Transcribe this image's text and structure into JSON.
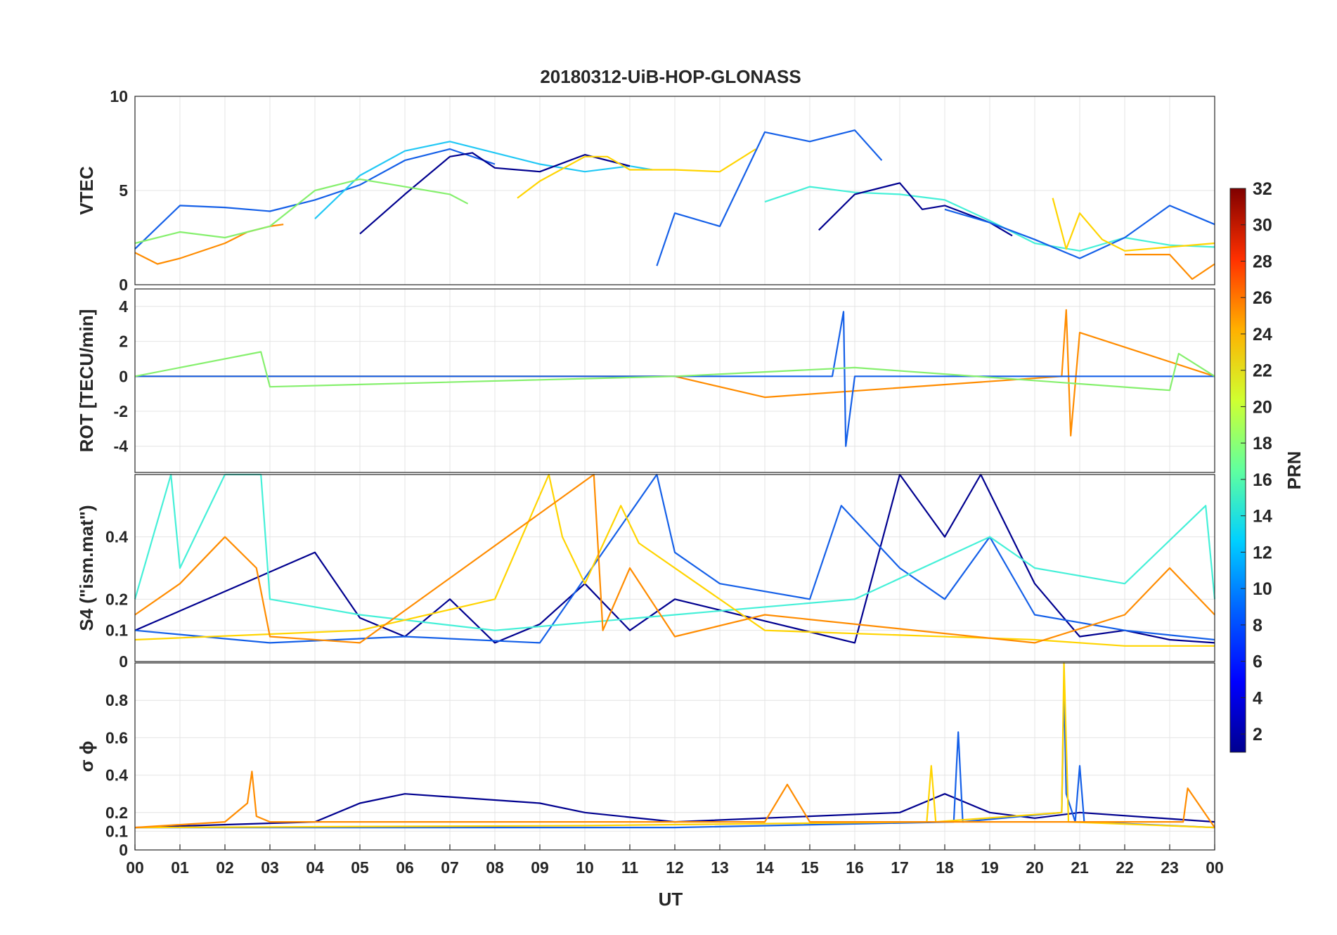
{
  "figure": {
    "title": "20180312-UiB-HOP-GLONASS",
    "xlabel": "UT",
    "x_ticks": [
      "00",
      "01",
      "02",
      "03",
      "04",
      "05",
      "06",
      "07",
      "08",
      "09",
      "10",
      "11",
      "12",
      "13",
      "14",
      "15",
      "16",
      "17",
      "18",
      "19",
      "20",
      "21",
      "22",
      "23",
      "00"
    ],
    "grid": true
  },
  "colorbar": {
    "label": "PRN",
    "range": [
      1,
      32
    ],
    "ticks": [
      "2",
      "4",
      "6",
      "8",
      "10",
      "12",
      "14",
      "16",
      "18",
      "20",
      "22",
      "24",
      "26",
      "28",
      "30",
      "32"
    ],
    "colormap": "jet",
    "colors": [
      "#00008f",
      "#0000ff",
      "#0080ff",
      "#00ffff",
      "#80ff80",
      "#ffff00",
      "#ff8000",
      "#ff0000",
      "#800000"
    ]
  },
  "chart_data": [
    {
      "type": "line",
      "panel": "vtec",
      "ylabel": "VTEC",
      "xlim": [
        0,
        24
      ],
      "ylim": [
        0,
        10
      ],
      "y_ticks": [
        "0",
        "5",
        "10"
      ],
      "series": [
        {
          "color": "#1560e8",
          "x": [
            0,
            1,
            2,
            3,
            4,
            5,
            6,
            7,
            8
          ],
          "y": [
            1.9,
            4.2,
            4.1,
            3.9,
            4.5,
            5.3,
            6.6,
            7.2,
            6.4
          ]
        },
        {
          "color": "#22c8f5",
          "x": [
            4,
            5,
            6,
            7,
            8,
            9,
            10,
            11,
            11.5
          ],
          "y": [
            3.5,
            5.8,
            7.1,
            7.6,
            7.0,
            6.4,
            6.0,
            6.3,
            6.1
          ]
        },
        {
          "color": "#00008f",
          "x": [
            5,
            6,
            7,
            7.5,
            8,
            9,
            10,
            11
          ],
          "y": [
            2.7,
            4.8,
            6.8,
            7.0,
            6.2,
            6.0,
            6.9,
            6.3
          ]
        },
        {
          "color": "#ffd400",
          "x": [
            8.5,
            9,
            10,
            10.5,
            11,
            12,
            13,
            13.8
          ],
          "y": [
            4.6,
            5.5,
            6.8,
            6.8,
            6.1,
            6.1,
            6.0,
            7.2
          ]
        },
        {
          "color": "#ff8c00",
          "x": [
            0,
            0.5,
            1,
            2,
            2.5,
            3,
            3.3
          ],
          "y": [
            1.7,
            1.1,
            1.4,
            2.2,
            2.8,
            3.1,
            3.2
          ]
        },
        {
          "color": "#86f06e",
          "x": [
            0,
            1,
            2,
            3,
            4,
            5,
            6,
            7,
            7.4
          ],
          "y": [
            2.2,
            2.8,
            2.5,
            3.1,
            5.0,
            5.6,
            5.2,
            4.8,
            4.3
          ]
        },
        {
          "color": "#1560e8",
          "x": [
            11.6,
            12,
            13,
            14,
            15,
            16,
            16.6
          ],
          "y": [
            1.0,
            3.8,
            3.1,
            8.1,
            7.6,
            8.2,
            6.6
          ]
        },
        {
          "color": "#45f0d8",
          "x": [
            14,
            15,
            16,
            17,
            18,
            19,
            20,
            21,
            22,
            23,
            24
          ],
          "y": [
            4.4,
            5.2,
            4.9,
            4.8,
            4.5,
            3.4,
            2.2,
            1.8,
            2.5,
            2.1,
            2.0
          ]
        },
        {
          "color": "#00008f",
          "x": [
            15.2,
            16,
            17,
            17.5,
            18,
            19,
            19.5
          ],
          "y": [
            2.9,
            4.8,
            5.4,
            4.0,
            4.2,
            3.3,
            2.6
          ]
        },
        {
          "color": "#1560e8",
          "x": [
            18,
            19,
            20,
            21,
            22,
            23,
            24
          ],
          "y": [
            4.0,
            3.3,
            2.4,
            1.4,
            2.5,
            4.2,
            3.2
          ]
        },
        {
          "color": "#ffd400",
          "x": [
            20.4,
            20.7,
            21,
            21.5,
            22,
            23,
            24
          ],
          "y": [
            4.6,
            1.9,
            3.8,
            2.4,
            1.8,
            2.0,
            2.2
          ]
        },
        {
          "color": "#ff8c00",
          "x": [
            22,
            23,
            23.5,
            24
          ],
          "y": [
            1.6,
            1.6,
            0.3,
            1.1
          ]
        }
      ]
    },
    {
      "type": "line",
      "panel": "rot",
      "ylabel": "ROT [TECU/min]",
      "xlim": [
        0,
        24
      ],
      "ylim": [
        -5.5,
        5
      ],
      "y_ticks": [
        "-4",
        "-2",
        "0",
        "2",
        "4"
      ],
      "series": [
        {
          "color": "#ff8c00",
          "x": [
            0,
            6,
            12,
            14,
            20.6,
            20.7,
            20.8,
            21,
            24
          ],
          "y": [
            0,
            0,
            0,
            -1.2,
            0,
            3.8,
            -3.4,
            2.5,
            0
          ]
        },
        {
          "color": "#1560e8",
          "x": [
            0,
            15.5,
            15.75,
            15.8,
            16,
            24
          ],
          "y": [
            0,
            0,
            3.7,
            -4.0,
            0,
            0
          ]
        },
        {
          "color": "#86f06e",
          "x": [
            0,
            2.8,
            3,
            12,
            16,
            23,
            23.2,
            24
          ],
          "y": [
            0,
            1.4,
            -0.6,
            0,
            0.5,
            -0.8,
            1.3,
            0
          ]
        }
      ]
    },
    {
      "type": "line",
      "panel": "s4",
      "ylabel": "S4 (\"ism.mat\")",
      "xlim": [
        0,
        24
      ],
      "ylim": [
        0,
        0.6
      ],
      "y_ticks": [
        "0",
        "0.1",
        "0.2",
        "0.4"
      ],
      "series": [
        {
          "color": "#00008f",
          "x": [
            0,
            4,
            5,
            6,
            7,
            8,
            9,
            10,
            11,
            12,
            16,
            17,
            18,
            18.8,
            20,
            21,
            22,
            23,
            24
          ],
          "y": [
            0.1,
            0.35,
            0.14,
            0.08,
            0.2,
            0.06,
            0.12,
            0.25,
            0.1,
            0.2,
            0.06,
            0.6,
            0.4,
            0.6,
            0.25,
            0.08,
            0.1,
            0.07,
            0.06
          ]
        },
        {
          "color": "#1560e8",
          "x": [
            0,
            3,
            6,
            9,
            11.6,
            12,
            13,
            15,
            15.7,
            17,
            18,
            19,
            20,
            22,
            24
          ],
          "y": [
            0.1,
            0.06,
            0.08,
            0.06,
            0.6,
            0.35,
            0.25,
            0.2,
            0.5,
            0.3,
            0.2,
            0.4,
            0.15,
            0.1,
            0.07
          ]
        },
        {
          "color": "#45f0d8",
          "x": [
            0,
            0.8,
            1,
            2,
            2.8,
            3,
            5,
            8,
            12,
            16,
            19,
            20,
            22,
            23.8,
            24
          ],
          "y": [
            0.2,
            0.6,
            0.3,
            0.6,
            0.6,
            0.2,
            0.15,
            0.1,
            0.15,
            0.2,
            0.4,
            0.3,
            0.25,
            0.5,
            0.2
          ]
        },
        {
          "color": "#ffd400",
          "x": [
            0,
            5,
            8,
            9.2,
            9.5,
            10,
            10.8,
            11.2,
            14,
            20,
            22,
            24
          ],
          "y": [
            0.07,
            0.1,
            0.2,
            0.6,
            0.4,
            0.25,
            0.5,
            0.38,
            0.1,
            0.07,
            0.05,
            0.05
          ]
        },
        {
          "color": "#ff8c00",
          "x": [
            0,
            1,
            2,
            2.7,
            3,
            5,
            10.2,
            10.4,
            11,
            12,
            14,
            20,
            22,
            23,
            24
          ],
          "y": [
            0.15,
            0.25,
            0.4,
            0.3,
            0.08,
            0.06,
            0.6,
            0.1,
            0.3,
            0.08,
            0.15,
            0.06,
            0.15,
            0.3,
            0.15
          ]
        }
      ]
    },
    {
      "type": "line",
      "panel": "sigma_phi",
      "ylabel": "σ ϕ",
      "xlim": [
        0,
        24
      ],
      "ylim": [
        0,
        1
      ],
      "y_ticks": [
        "0",
        "0.1",
        "0.2",
        "0.4",
        "0.6",
        "0.8"
      ],
      "series": [
        {
          "color": "#00008f",
          "x": [
            0,
            4,
            5,
            6,
            9,
            10,
            12,
            17,
            18,
            19,
            20,
            21,
            24
          ],
          "y": [
            0.12,
            0.15,
            0.25,
            0.3,
            0.25,
            0.2,
            0.15,
            0.2,
            0.3,
            0.2,
            0.17,
            0.2,
            0.15
          ]
        },
        {
          "color": "#1560e8",
          "x": [
            0,
            12,
            18.2,
            18.3,
            18.4,
            20.6,
            20.65,
            20.7,
            20.9,
            21,
            21.1,
            24
          ],
          "y": [
            0.12,
            0.12,
            0.15,
            0.63,
            0.15,
            0.2,
            0.88,
            0.3,
            0.15,
            0.45,
            0.15,
            0.12
          ]
        },
        {
          "color": "#ffd400",
          "x": [
            0,
            10,
            17.6,
            17.7,
            17.8,
            20.6,
            20.65,
            20.75,
            24
          ],
          "y": [
            0.12,
            0.13,
            0.15,
            0.45,
            0.15,
            0.2,
            1.0,
            0.15,
            0.12
          ]
        },
        {
          "color": "#ff8c00",
          "x": [
            0,
            2,
            2.5,
            2.6,
            2.7,
            3,
            14,
            14.5,
            15,
            23.3,
            23.4,
            24
          ],
          "y": [
            0.12,
            0.15,
            0.25,
            0.42,
            0.18,
            0.15,
            0.15,
            0.35,
            0.15,
            0.15,
            0.33,
            0.12
          ]
        }
      ]
    }
  ]
}
